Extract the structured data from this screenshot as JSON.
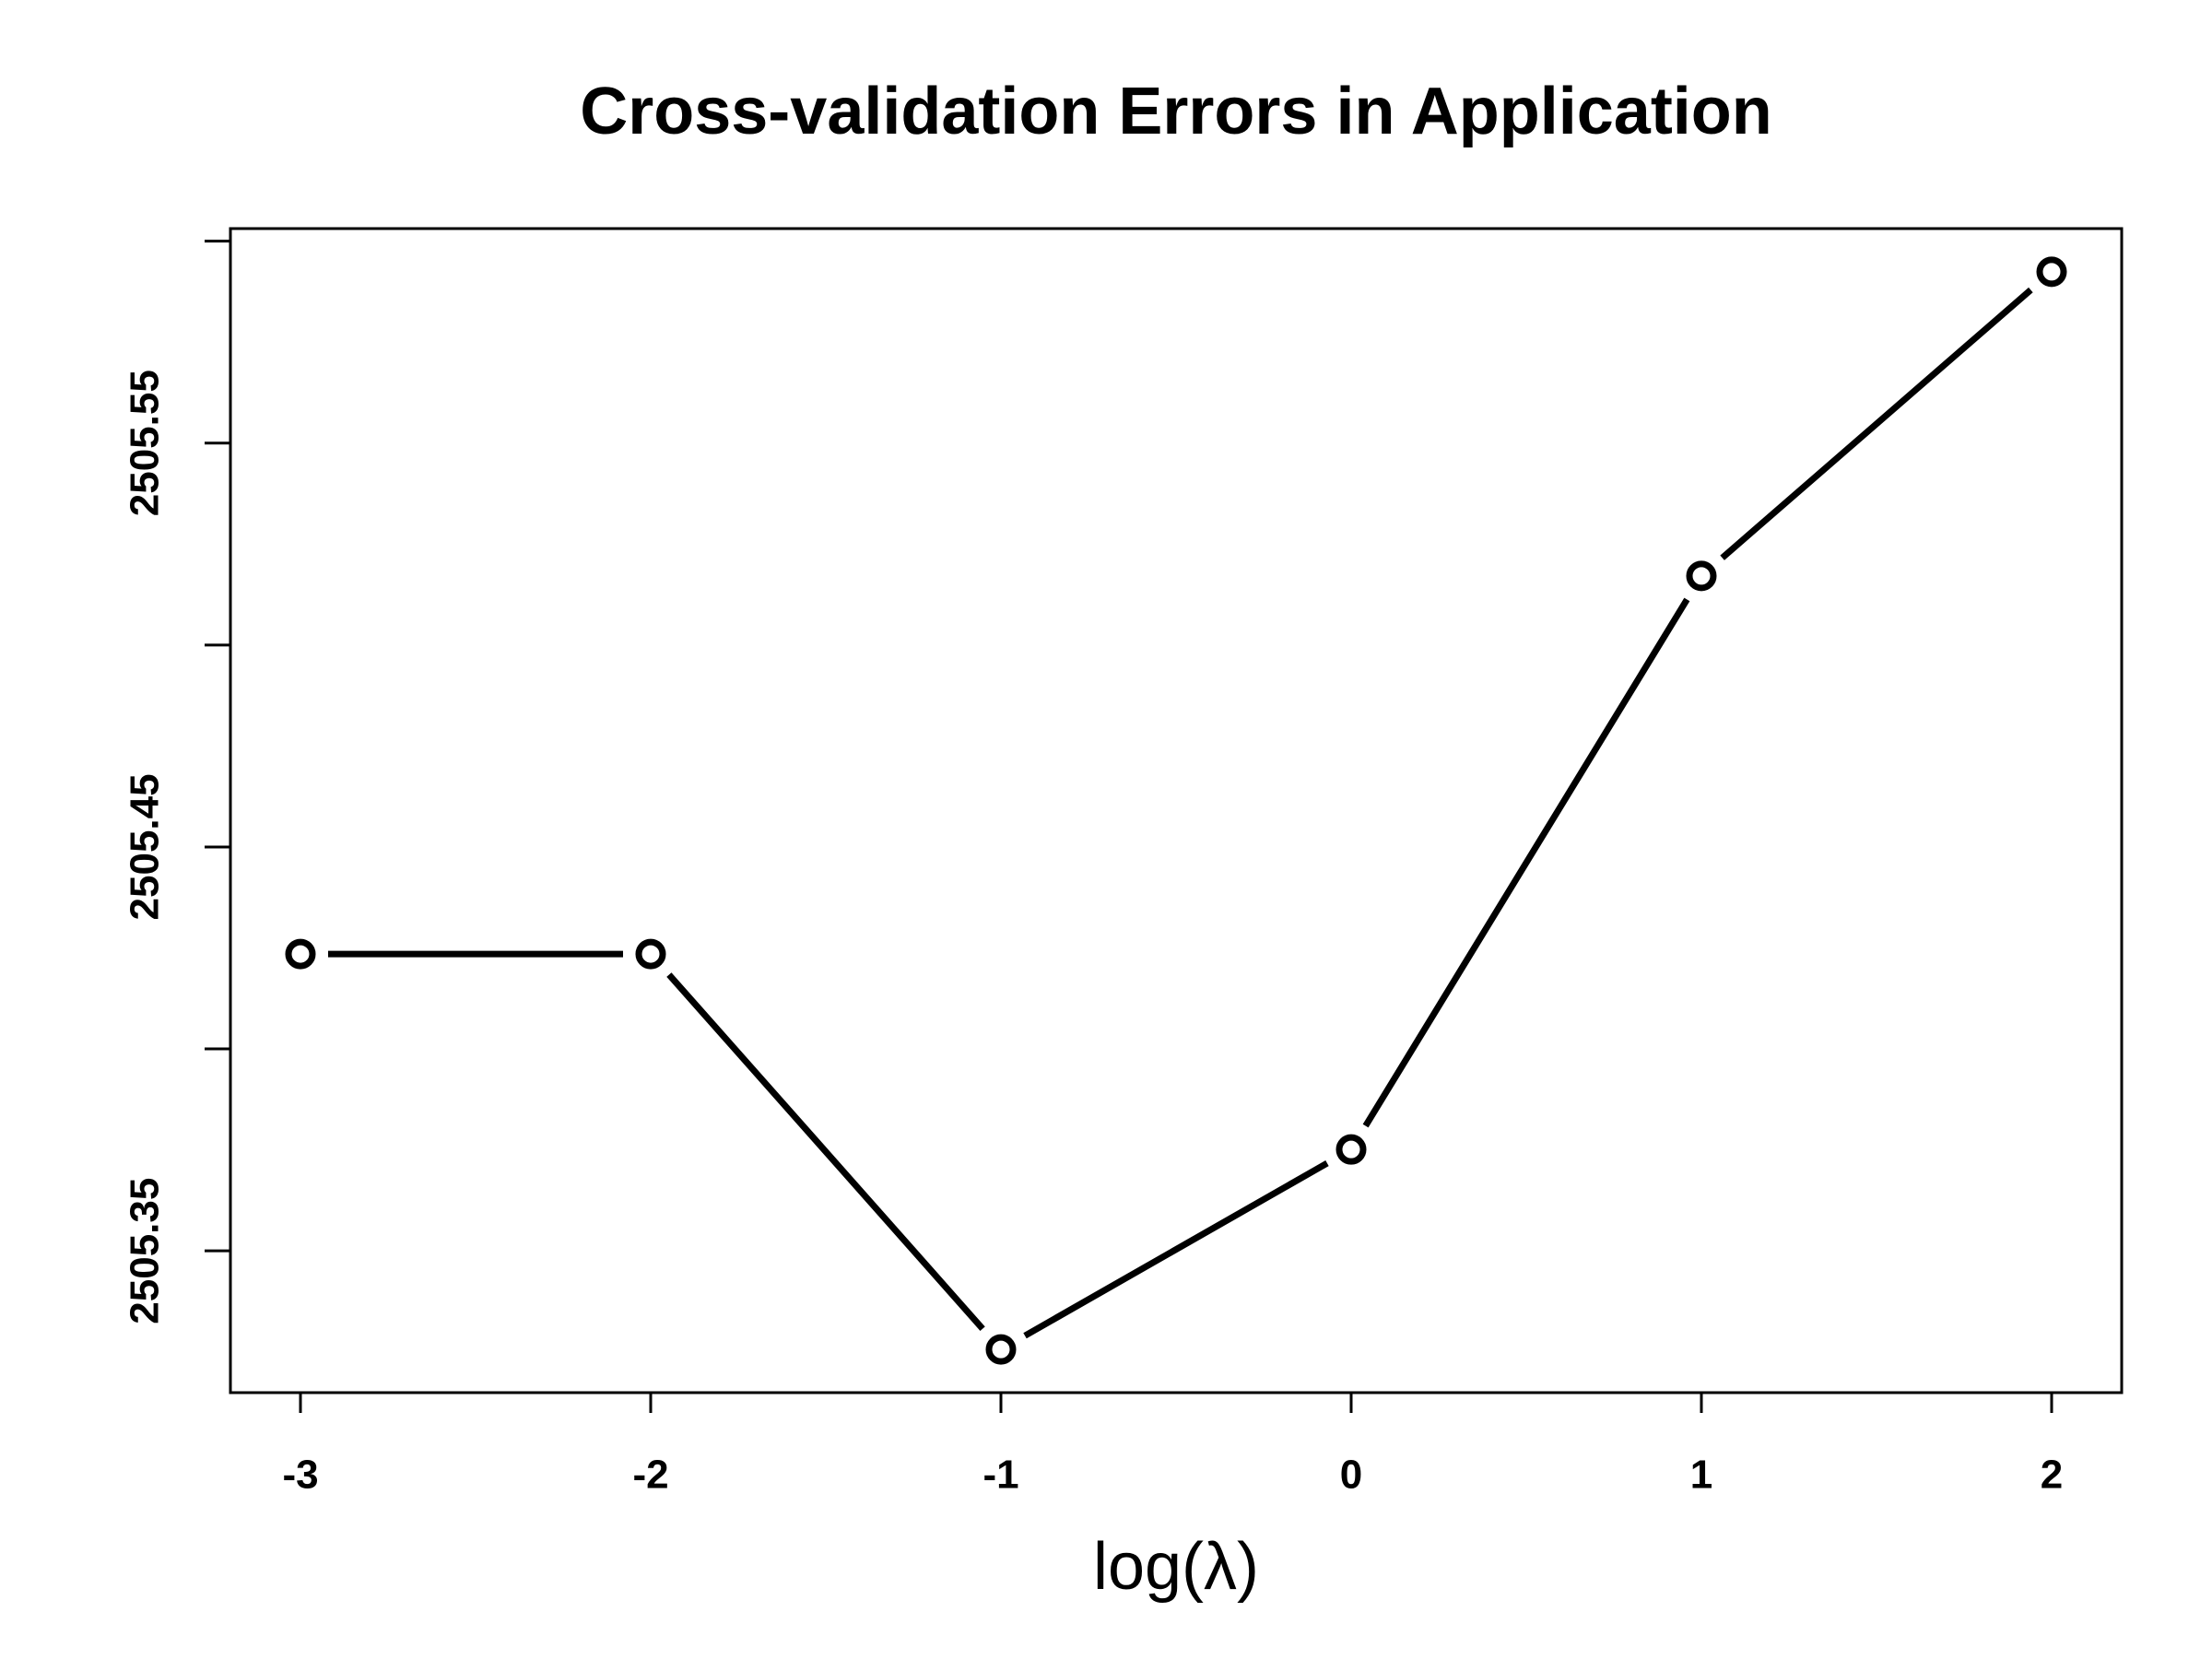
{
  "chart_data": {
    "type": "line",
    "title": "Cross-validation Errors in Application",
    "x_label": "log(λ)",
    "x": [
      -3,
      -2,
      -1,
      0,
      1,
      2
    ],
    "series": [
      {
        "color": "#000000",
        "values": [
          2505.4235,
          2505.4235,
          2505.3256,
          2505.3751,
          2505.5171,
          2505.5924
        ]
      }
    ],
    "xlim": [
      -3.2,
      2.2
    ],
    "xticks": [
      -3,
      -2,
      -1,
      0,
      1,
      2
    ],
    "ylim": [
      2505.3149,
      2505.6031
    ],
    "yticks": [
      2505.35,
      2505.4,
      2505.45,
      2505.5,
      2505.55,
      2505.6
    ],
    "grid": false
  }
}
